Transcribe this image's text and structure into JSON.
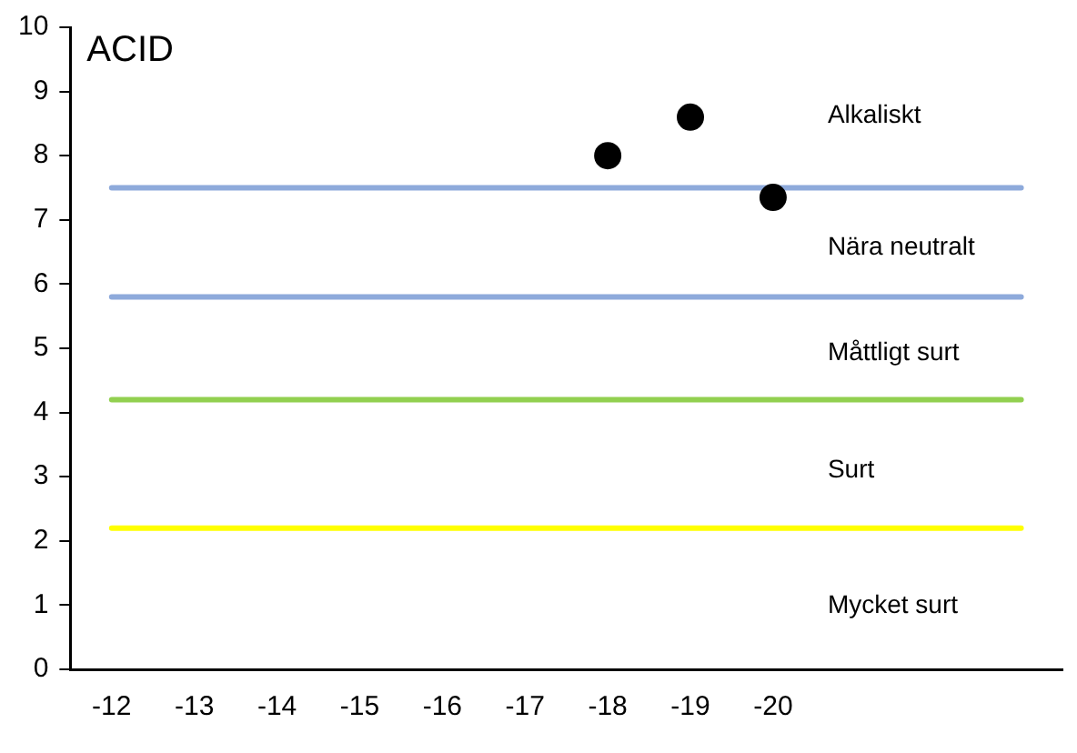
{
  "chart_data": {
    "type": "scatter",
    "title": "ACID",
    "categories": [
      "-12",
      "-13",
      "-14",
      "-15",
      "-16",
      "-17",
      "-18",
      "-19",
      "-20",
      null,
      null,
      null
    ],
    "series": [
      {
        "color": "#000000",
        "values": [
          null,
          null,
          null,
          null,
          null,
          null,
          8.0,
          8.6,
          7.35,
          null,
          null,
          null
        ]
      }
    ],
    "ylim": [
      0,
      10
    ],
    "yticks": [
      0,
      1,
      2,
      3,
      4,
      5,
      6,
      7,
      8,
      9,
      10
    ],
    "grid": false,
    "legend": false,
    "marker": "circle",
    "ref_lines": [
      {
        "axis": "y",
        "value": 7.5,
        "color": "#8eaadb"
      },
      {
        "axis": "y",
        "value": 5.8,
        "color": "#8eaadb"
      },
      {
        "axis": "y",
        "value": 4.2,
        "color": "#92d050"
      },
      {
        "axis": "y",
        "value": 2.2,
        "color": "#ffff00"
      }
    ],
    "annotations": [
      "Alkaliskt",
      "Nära neutralt",
      "Måttligt surt",
      "Surt",
      "Mycket surt"
    ]
  }
}
